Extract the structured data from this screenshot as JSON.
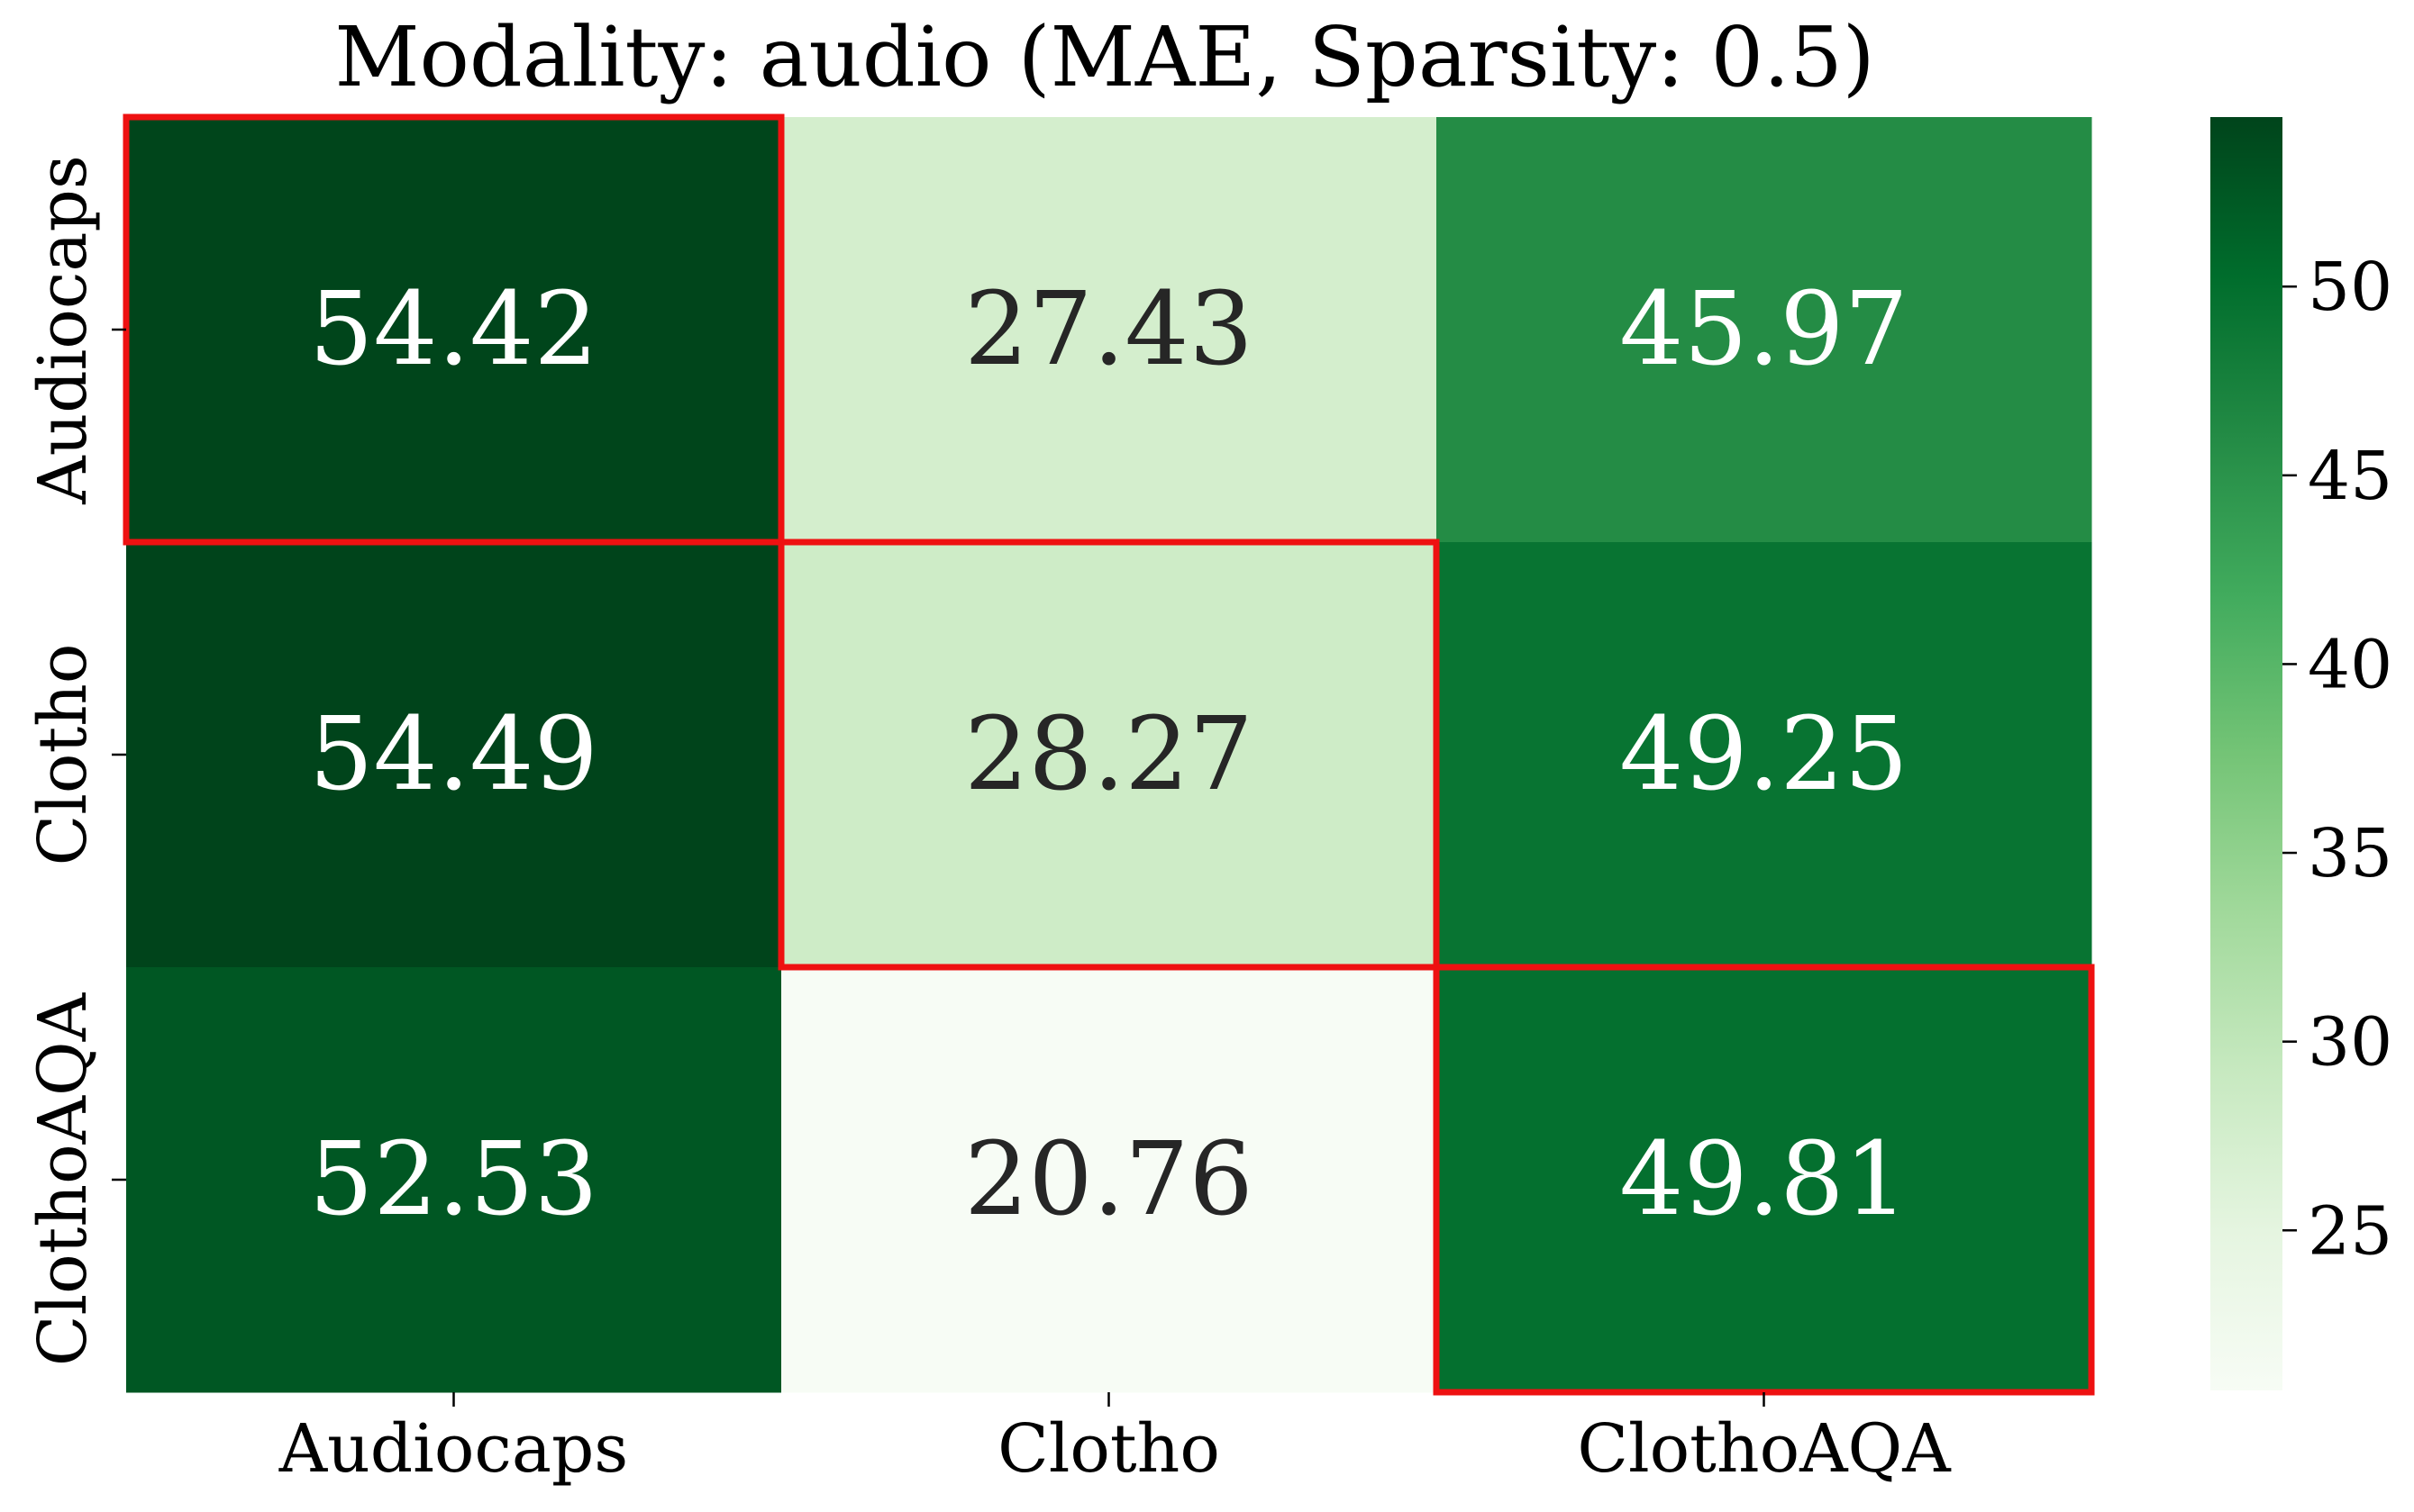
{
  "chart_data": {
    "type": "heatmap",
    "title": "Modality: audio (MAE, Sparsity: 0.5)",
    "xlabel": "",
    "ylabel": "",
    "rows": [
      "Audiocaps",
      "Clotho",
      "ClothoAQA"
    ],
    "columns": [
      "Audiocaps",
      "Clotho",
      "ClothoAQA"
    ],
    "values": [
      [
        54.42,
        27.43,
        45.97
      ],
      [
        54.49,
        28.27,
        49.25
      ],
      [
        52.53,
        20.76,
        49.81
      ]
    ],
    "highlighted_cells": [
      [
        0,
        0
      ],
      [
        1,
        1
      ],
      [
        2,
        2
      ]
    ],
    "highlight_color": "#ee1111",
    "colormap": "Greens",
    "colorbar": {
      "range": [
        20.76,
        54.49
      ],
      "ticks": [
        25,
        30,
        35,
        40,
        45,
        50
      ]
    },
    "dark_text_color": "#262626",
    "light_text_color": "#ffffff"
  }
}
